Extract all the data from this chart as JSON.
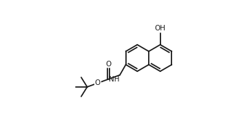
{
  "background_color": "#ffffff",
  "line_color": "#1a1a1a",
  "line_width": 1.3,
  "font_size": 7.5,
  "fig_width": 3.34,
  "fig_height": 1.68,
  "dpi": 100,
  "bl": 0.55,
  "xlim": [
    0,
    9.5
  ],
  "ylim": [
    0.2,
    4.5
  ]
}
